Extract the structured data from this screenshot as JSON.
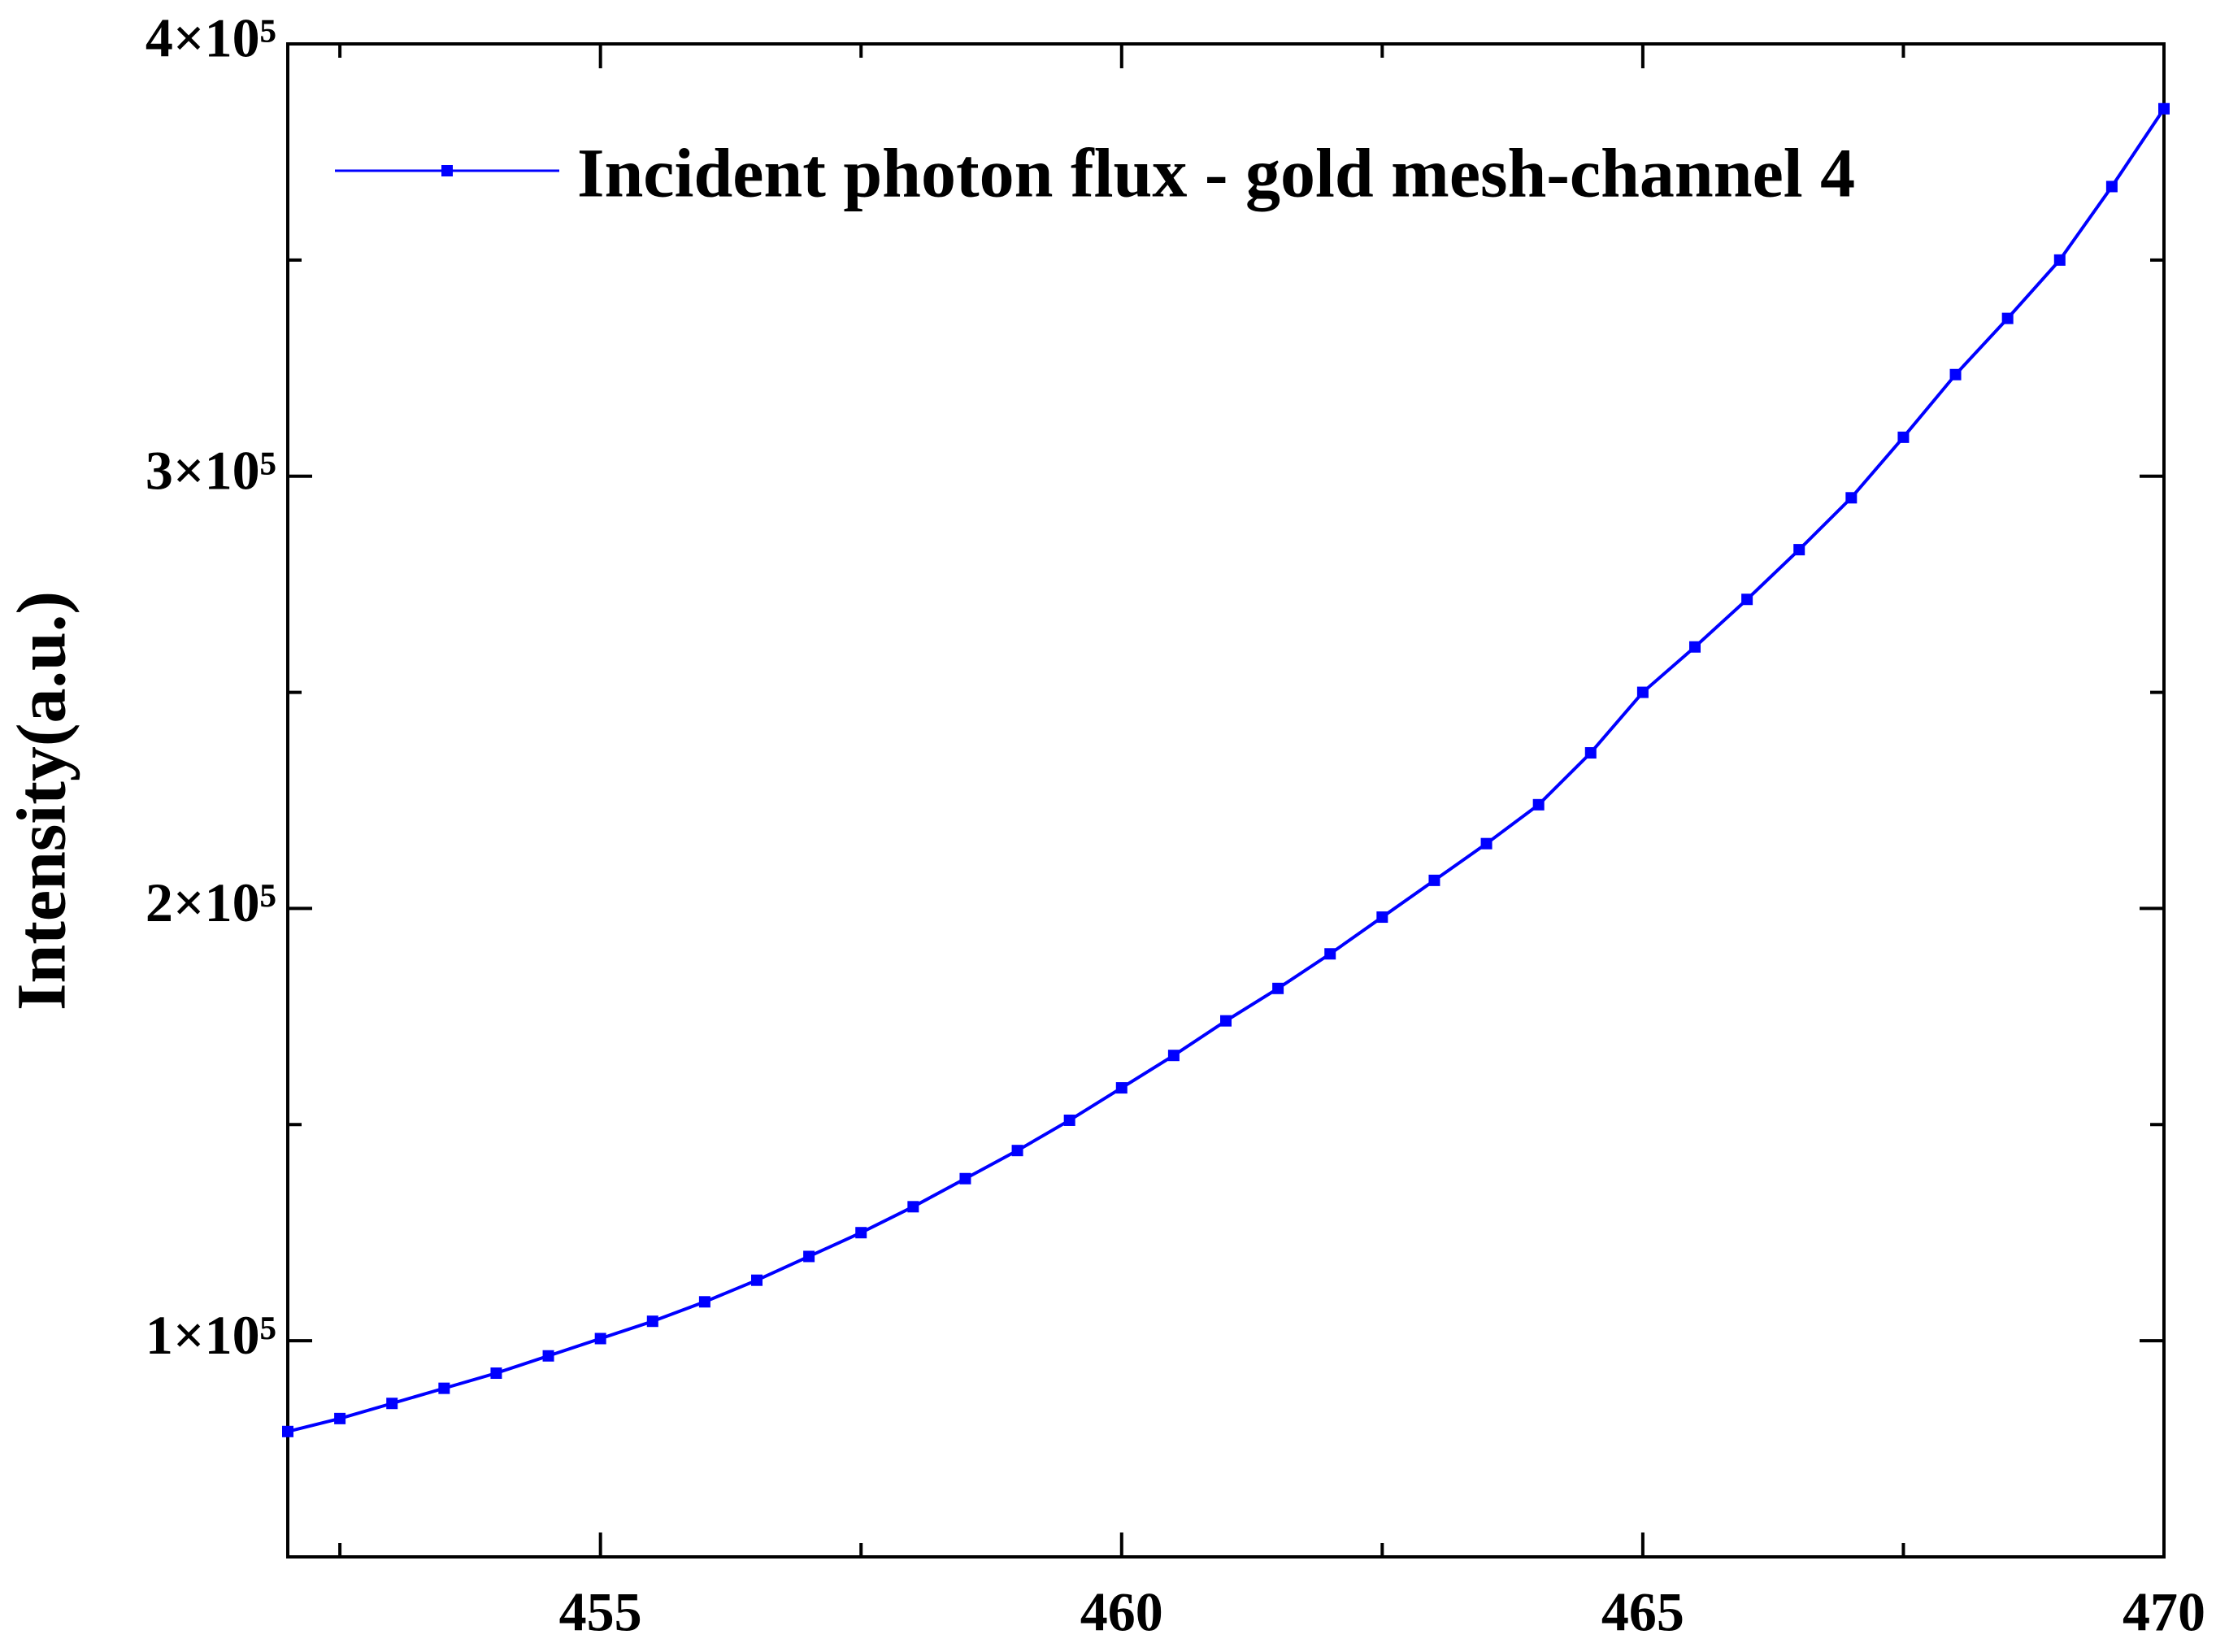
{
  "chart_data": {
    "type": "line",
    "ylabel": "Intensity(a.u.)",
    "x": [
      452,
      452.5,
      453,
      453.5,
      454,
      454.5,
      455,
      455.5,
      456,
      456.5,
      457,
      457.5,
      458,
      458.5,
      459,
      459.5,
      460,
      460.5,
      461,
      461.5,
      462,
      462.5,
      463,
      463.5,
      464,
      464.5,
      465,
      465.5,
      466,
      466.5,
      467,
      467.5,
      468,
      468.5,
      469,
      469.5,
      470
    ],
    "series": [
      {
        "name": "Incident photon flux - gold mesh-channel 4",
        "color": "#0000ff",
        "values": [
          79000,
          82000,
          85500,
          89000,
          92500,
          96500,
          100500,
          104500,
          109000,
          114000,
          119500,
          125000,
          131000,
          137500,
          144000,
          151000,
          158500,
          166000,
          174000,
          181500,
          189500,
          198000,
          206500,
          215000,
          224000,
          236000,
          250000,
          260500,
          271500,
          283000,
          295000,
          309000,
          323500,
          336500,
          350000,
          367000,
          385000
        ]
      }
    ],
    "xlim": [
      452,
      470
    ],
    "xticks": [
      455,
      460,
      465,
      470
    ],
    "xminorticks": [
      452.5,
      457.5,
      462.5,
      467.5
    ],
    "ylim": [
      50000,
      400000
    ],
    "yticks": [
      {
        "value": 100000,
        "label": "1×10⁵"
      },
      {
        "value": 200000,
        "label": "2×10⁵"
      },
      {
        "value": 300000,
        "label": "3×10⁵"
      },
      {
        "value": 400000,
        "label": "4×10⁵"
      }
    ],
    "yminorticks": [
      150000,
      250000,
      350000
    ],
    "legend": "upper left",
    "grid": false
  }
}
